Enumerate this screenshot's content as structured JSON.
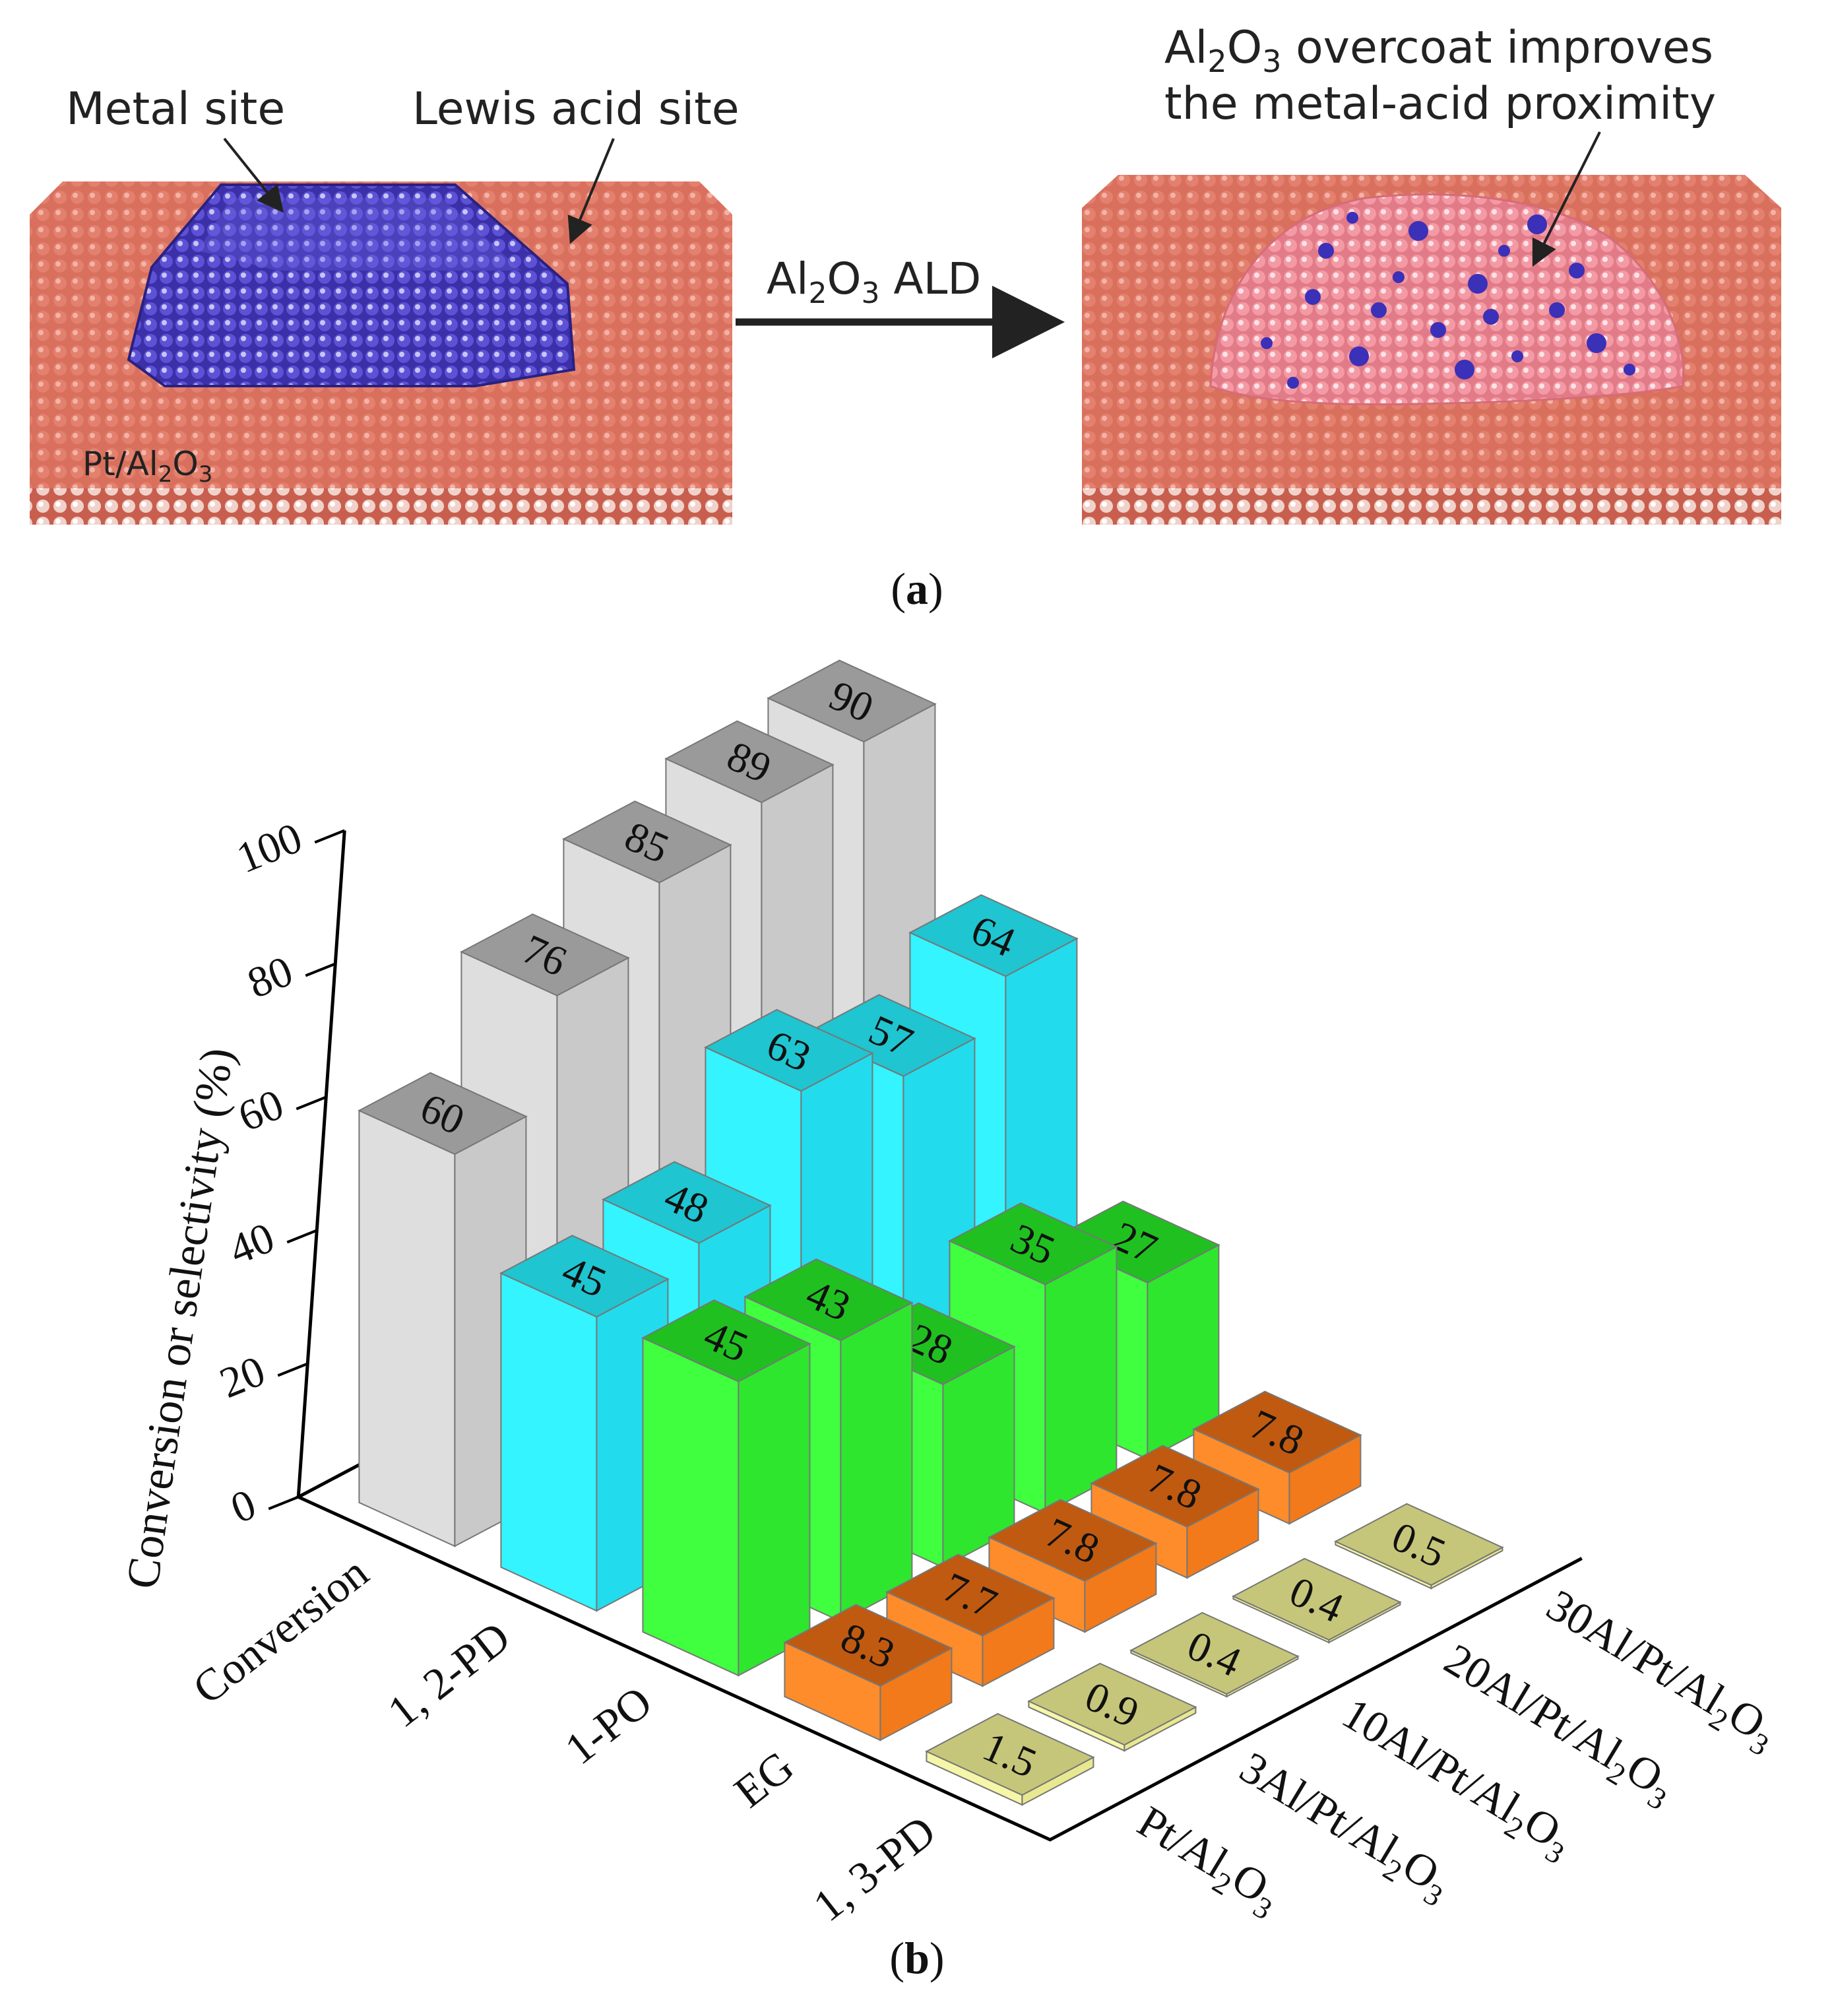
{
  "panel_a": {
    "label": "a",
    "left_model": {
      "metal_site": "Metal site",
      "lewis_site": "Lewis acid site",
      "support": "Pt/Al",
      "support_sub": "2",
      "support_tail": "O",
      "support_sub2": "3"
    },
    "arrow": {
      "pre": "Al",
      "sub1": "2",
      "mid": "O",
      "sub2": "3",
      "post": " ALD"
    },
    "right_model": {
      "line1_pre": "Al",
      "line1_sub1": "2",
      "line1_mid": "O",
      "line1_sub2": "3",
      "line1_post": " overcoat improves",
      "line2": "the metal-acid proximity"
    },
    "colors": {
      "support": "#d9705e",
      "metal": "#4a40bf",
      "overcoat": "#ef8f9a"
    }
  },
  "panel_b": {
    "label": "b"
  },
  "chart_data": {
    "type": "bar",
    "subtype": "3d-grouped",
    "title": "",
    "ylabel": "Conversion or selectivity (%)",
    "ylim": [
      0,
      100
    ],
    "yticks": [
      0,
      20,
      40,
      60,
      80,
      100
    ],
    "categories": [
      "Conversion",
      "1, 2-PD",
      "1-PO",
      "EG",
      "1, 3-PD"
    ],
    "series": [
      {
        "name": "Pt/Al2O3",
        "label_main": "Pt/Al",
        "label_sub": "2",
        "label_tail": "O",
        "label_sub2": "3",
        "values": [
          60,
          45,
          45,
          8.3,
          1.5
        ],
        "labels": [
          "60",
          "45",
          "45",
          "8.3",
          "1.5"
        ]
      },
      {
        "name": "3Al/Pt/Al2O3",
        "label_main": "3Al/Pt/Al",
        "label_sub": "2",
        "label_tail": "O",
        "label_sub2": "3",
        "values": [
          76,
          48,
          43,
          7.7,
          0.9
        ],
        "labels": [
          "76",
          "48",
          "43",
          "7.7",
          "0.9"
        ]
      },
      {
        "name": "10Al/Pt/Al2O3",
        "label_main": "10Al/Pt/Al",
        "label_sub": "2",
        "label_tail": "O",
        "label_sub2": "3",
        "values": [
          85,
          63,
          28,
          7.8,
          0.4
        ],
        "labels": [
          "85",
          "63",
          "28",
          "7.8",
          "0.4"
        ]
      },
      {
        "name": "20Al/Pt/Al2O3",
        "label_main": "20Al/Pt/Al",
        "label_sub": "2",
        "label_tail": "O",
        "label_sub2": "3",
        "values": [
          89,
          57,
          35,
          7.8,
          0.4
        ],
        "labels": [
          "89",
          "57",
          "35",
          "7.8",
          "0.4"
        ]
      },
      {
        "name": "30Al/Pt/Al2O3",
        "label_main": "30Al/Pt/Al",
        "label_sub": "2",
        "label_tail": "O",
        "label_sub2": "3",
        "values": [
          90,
          64,
          27,
          7.8,
          0.5
        ],
        "labels": [
          "90",
          "64",
          "27",
          "7.8",
          "0.5"
        ]
      }
    ],
    "category_colors": {
      "Conversion": {
        "front": "#dedede",
        "side": "#c9c9c9",
        "top": "#9a9a9a"
      },
      "1, 2-PD": {
        "front": "#33f4ff",
        "side": "#22dcee",
        "top": "#1fc5d0"
      },
      "1-PO": {
        "front": "#3fff3f",
        "side": "#2ee62e",
        "top": "#20c020"
      },
      "EG": {
        "front": "#ff8c2a",
        "side": "#f27a1a",
        "top": "#c05a10"
      },
      "1, 3-PD": {
        "front": "#f6f6a8",
        "side": "#e8e890",
        "top": "#c6c67a"
      }
    }
  }
}
